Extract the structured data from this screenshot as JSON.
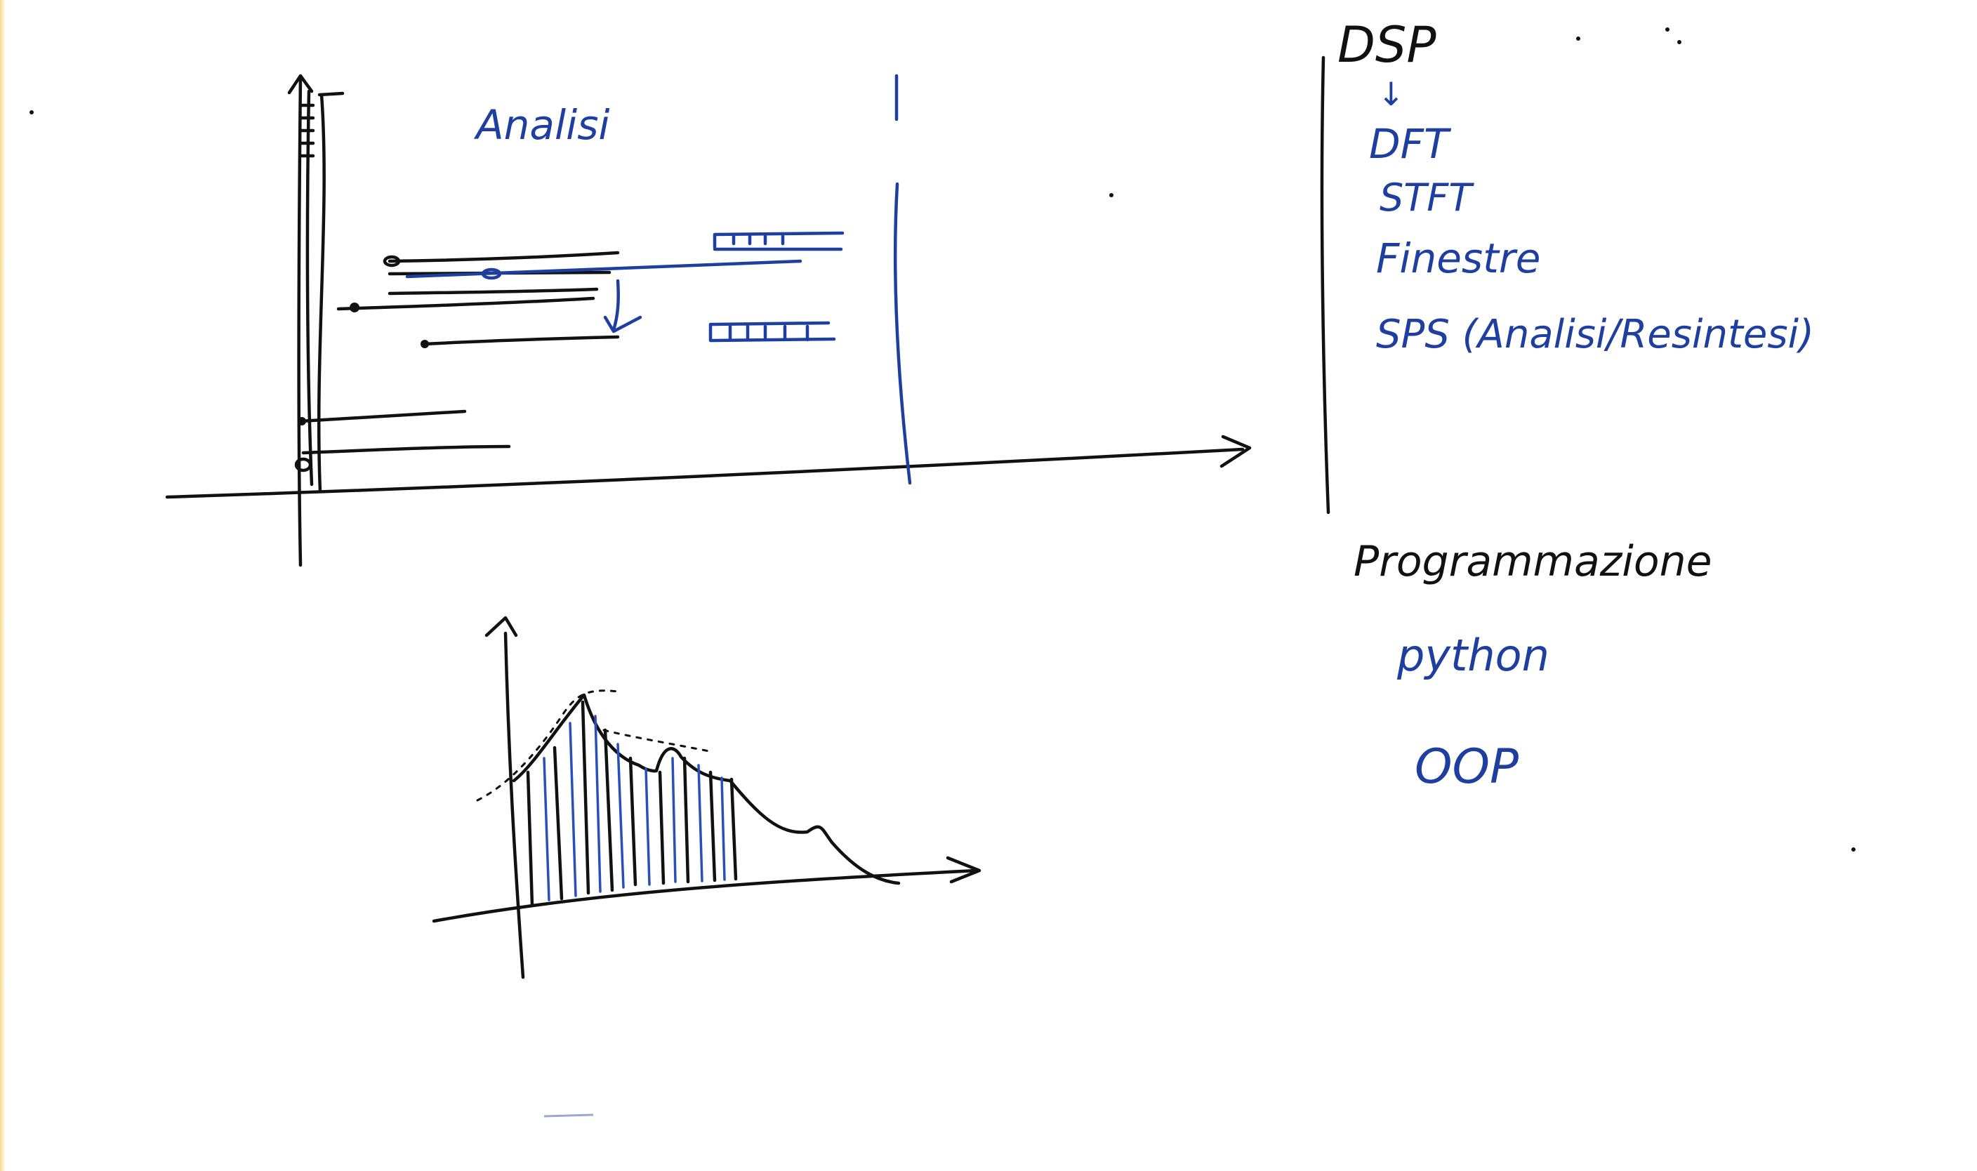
{
  "board": {
    "background": "#ffffff",
    "ink_black": "#111111",
    "ink_blue": "#1f3fa0"
  },
  "sketch_top": {
    "label": "Analisi"
  },
  "notes_right": {
    "dsp": "DSP",
    "arrow": "↓",
    "dft": "DFT",
    "stft": "STFT",
    "finestre": "Finestre",
    "sps": "SPS (Analisi/Resintesi)",
    "programmazione": "Programmazione",
    "python": "python",
    "oop": "OOP"
  }
}
